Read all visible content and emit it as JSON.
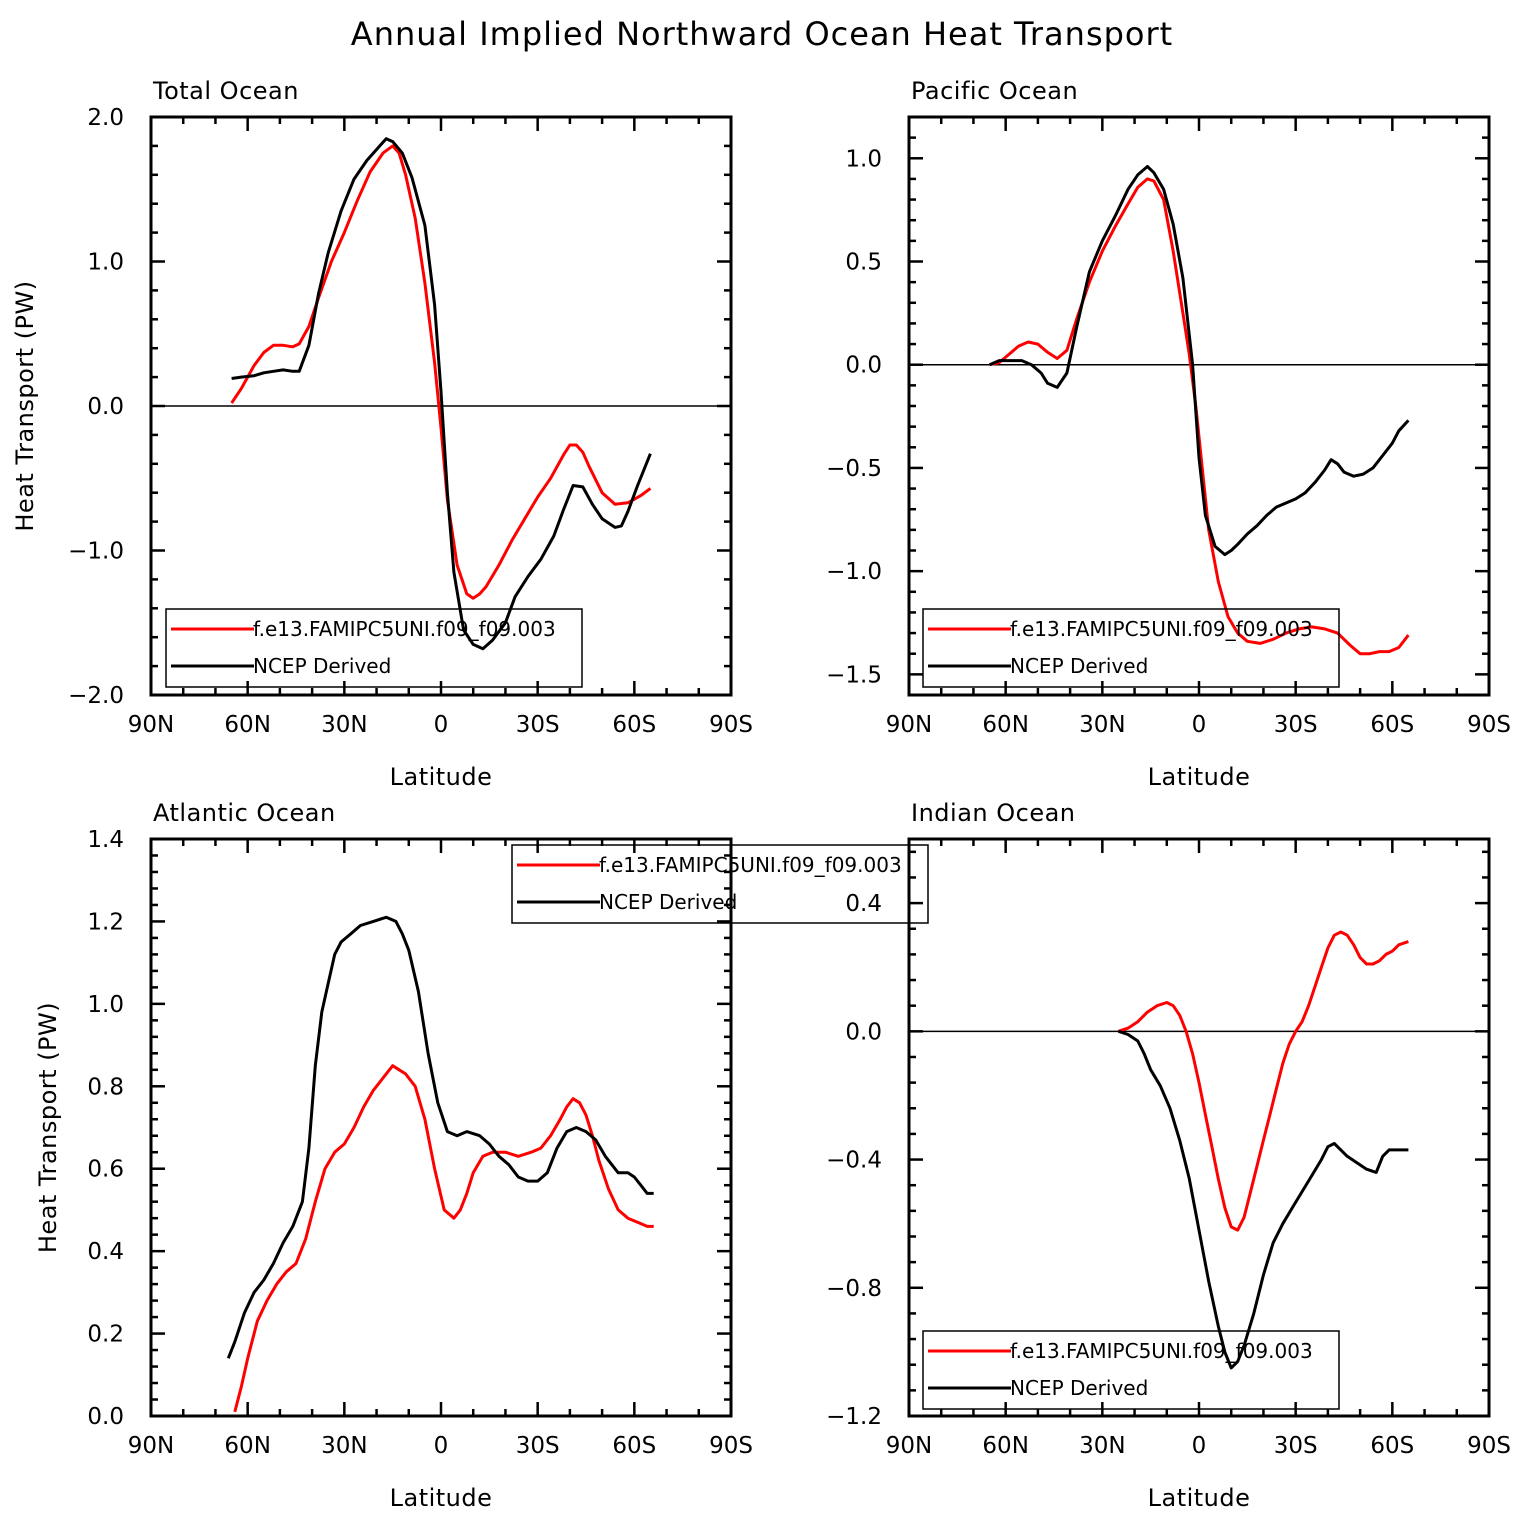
{
  "figure": {
    "title": "Annual Implied Northward Ocean Heat Transport"
  },
  "colors": {
    "model": "#ff0000",
    "obs": "#000000",
    "axis": "#000000",
    "background": "#ffffff"
  },
  "chart_data": [
    {
      "type": "line",
      "title": "Total Ocean",
      "xlabel": "Latitude",
      "ylabel": "Heat Transport (PW)",
      "xlim": [
        90,
        -90
      ],
      "ylim": [
        -2.0,
        2.0
      ],
      "xticks": [
        90,
        60,
        30,
        0,
        -30,
        -60,
        -90
      ],
      "xtick_labels": [
        "90N",
        "60N",
        "30N",
        "0",
        "30S",
        "60S",
        "90S"
      ],
      "yticks": [
        -2.0,
        -1.0,
        0.0,
        1.0,
        2.0
      ],
      "ytick_labels": [
        "−2.0",
        "−1.0",
        "0.0",
        "1.0",
        "2.0"
      ],
      "zero_line": true,
      "legend": {
        "placement": "bottom-left",
        "entries": [
          "f.e13.FAMIPC5UNI.f09_f09.003",
          "NCEP Derived"
        ]
      },
      "series": [
        {
          "name": "f.e13.FAMIPC5UNI.f09_f09.003",
          "color": "#ff0000",
          "x": [
            65,
            62,
            58,
            55,
            52,
            49,
            46,
            44,
            41,
            38,
            34,
            30,
            26,
            22,
            18,
            15,
            13,
            11,
            8,
            5,
            2,
            0,
            -2,
            -5,
            -8,
            -10,
            -12,
            -14,
            -18,
            -22,
            -26,
            -30,
            -34,
            -38,
            -40,
            -42,
            -44,
            -46,
            -50,
            -54,
            -58,
            -62,
            -65
          ],
          "y": [
            0.02,
            0.12,
            0.28,
            0.37,
            0.42,
            0.42,
            0.41,
            0.43,
            0.55,
            0.75,
            1.0,
            1.2,
            1.42,
            1.62,
            1.75,
            1.8,
            1.75,
            1.6,
            1.3,
            0.85,
            0.3,
            -0.15,
            -0.65,
            -1.1,
            -1.3,
            -1.33,
            -1.3,
            -1.25,
            -1.1,
            -0.93,
            -0.78,
            -0.63,
            -0.5,
            -0.34,
            -0.27,
            -0.27,
            -0.32,
            -0.42,
            -0.6,
            -0.68,
            -0.67,
            -0.62,
            -0.57
          ]
        },
        {
          "name": "NCEP Derived",
          "color": "#000000",
          "x": [
            65,
            62,
            58,
            55,
            52,
            49,
            46,
            44,
            41,
            38,
            35,
            31,
            27,
            23,
            19,
            17,
            15,
            12,
            9,
            5,
            2,
            0,
            -2,
            -4,
            -7,
            -10,
            -13,
            -16,
            -20,
            -23,
            -27,
            -31,
            -35,
            -38,
            -41,
            -44,
            -47,
            -50,
            -54,
            -56,
            -58,
            -61,
            -65
          ],
          "y": [
            0.19,
            0.2,
            0.21,
            0.23,
            0.24,
            0.25,
            0.24,
            0.24,
            0.42,
            0.78,
            1.06,
            1.35,
            1.57,
            1.7,
            1.8,
            1.85,
            1.83,
            1.75,
            1.58,
            1.25,
            0.7,
            0.1,
            -0.6,
            -1.15,
            -1.55,
            -1.65,
            -1.68,
            -1.62,
            -1.5,
            -1.32,
            -1.18,
            -1.06,
            -0.9,
            -0.72,
            -0.55,
            -0.56,
            -0.68,
            -0.78,
            -0.84,
            -0.83,
            -0.73,
            -0.55,
            -0.33
          ]
        }
      ]
    },
    {
      "type": "line",
      "title": "Pacific Ocean",
      "xlabel": "Latitude",
      "ylabel": "",
      "xlim": [
        90,
        -90
      ],
      "ylim": [
        -1.6,
        1.2
      ],
      "xticks": [
        90,
        60,
        30,
        0,
        -30,
        -60,
        -90
      ],
      "xtick_labels": [
        "90N",
        "60N",
        "30N",
        "0",
        "30S",
        "60S",
        "90S"
      ],
      "yticks": [
        -1.5,
        -1.0,
        -0.5,
        0.0,
        0.5,
        1.0
      ],
      "ytick_labels": [
        "−1.5",
        "−1.0",
        "−0.5",
        "0.0",
        "0.5",
        "1.0"
      ],
      "zero_line": true,
      "legend": {
        "placement": "bottom-left",
        "entries": [
          "f.e13.FAMIPC5UNI.f09_f09.003",
          "NCEP Derived"
        ]
      },
      "series": [
        {
          "name": "f.e13.FAMIPC5UNI.f09_f09.003",
          "color": "#ff0000",
          "x": [
            65,
            62,
            59,
            56,
            53,
            50,
            47,
            44,
            41,
            38,
            34,
            30,
            26,
            22,
            19,
            16,
            14,
            11,
            8,
            5,
            3,
            1,
            -1,
            -3,
            -6,
            -9,
            -12,
            -15,
            -19,
            -23,
            -27,
            -31,
            -35,
            -39,
            -43,
            -47,
            -50,
            -53,
            -56,
            -59,
            -62,
            -65
          ],
          "y": [
            0.0,
            0.01,
            0.05,
            0.09,
            0.11,
            0.1,
            0.06,
            0.03,
            0.07,
            0.22,
            0.4,
            0.55,
            0.67,
            0.78,
            0.86,
            0.9,
            0.89,
            0.8,
            0.55,
            0.25,
            0.05,
            -0.2,
            -0.5,
            -0.8,
            -1.05,
            -1.22,
            -1.3,
            -1.34,
            -1.35,
            -1.33,
            -1.3,
            -1.28,
            -1.27,
            -1.28,
            -1.3,
            -1.36,
            -1.4,
            -1.4,
            -1.39,
            -1.39,
            -1.37,
            -1.31
          ]
        },
        {
          "name": "NCEP Derived",
          "color": "#000000",
          "x": [
            65,
            62,
            58,
            55,
            52,
            49,
            47,
            44,
            41,
            38,
            34,
            30,
            26,
            22,
            19,
            16,
            14,
            11,
            8,
            5,
            2,
            0,
            -2,
            -5,
            -8,
            -10,
            -12,
            -15,
            -18,
            -21,
            -24,
            -27,
            -30,
            -33,
            -36,
            -39,
            -41,
            -43,
            -45,
            -48,
            -51,
            -54,
            -57,
            -60,
            -62,
            -65
          ],
          "y": [
            0.0,
            0.02,
            0.02,
            0.02,
            0.0,
            -0.04,
            -0.09,
            -0.11,
            -0.04,
            0.18,
            0.45,
            0.6,
            0.72,
            0.85,
            0.92,
            0.96,
            0.93,
            0.85,
            0.68,
            0.42,
            0.0,
            -0.45,
            -0.73,
            -0.88,
            -0.92,
            -0.9,
            -0.87,
            -0.82,
            -0.78,
            -0.73,
            -0.69,
            -0.67,
            -0.65,
            -0.62,
            -0.57,
            -0.51,
            -0.46,
            -0.48,
            -0.52,
            -0.54,
            -0.53,
            -0.5,
            -0.44,
            -0.38,
            -0.32,
            -0.27
          ]
        }
      ]
    },
    {
      "type": "line",
      "title": "Atlantic Ocean",
      "xlabel": "Latitude",
      "ylabel": "Heat Transport (PW)",
      "xlim": [
        90,
        -90
      ],
      "ylim": [
        0.0,
        1.4
      ],
      "xticks": [
        90,
        60,
        30,
        0,
        -30,
        -60,
        -90
      ],
      "xtick_labels": [
        "90N",
        "60N",
        "30N",
        "0",
        "30S",
        "60S",
        "90S"
      ],
      "yticks": [
        0.0,
        0.2,
        0.4,
        0.6,
        0.8,
        1.0,
        1.2,
        1.4
      ],
      "ytick_labels": [
        "0.0",
        "0.2",
        "0.4",
        "0.6",
        "0.8",
        "1.0",
        "1.2",
        "1.4"
      ],
      "zero_line": false,
      "legend": {
        "placement": "top-center",
        "entries": [
          "f.e13.FAMIPC5UNI.f09_f09.003",
          "NCEP Derived"
        ]
      },
      "series": [
        {
          "name": "f.e13.FAMIPC5UNI.f09_f09.003",
          "color": "#ff0000",
          "x": [
            64,
            62,
            60,
            57,
            54,
            51,
            48,
            45,
            42,
            39,
            36,
            33,
            30,
            27,
            24,
            21,
            18,
            15,
            13,
            11,
            8,
            5,
            2,
            -1,
            -4,
            -6,
            -8,
            -10,
            -13,
            -16,
            -20,
            -24,
            -28,
            -31,
            -34,
            -37,
            -39,
            -41,
            -43,
            -45,
            -47,
            -49,
            -52,
            -55,
            -58,
            -61,
            -64,
            -66
          ],
          "y": [
            0.01,
            0.07,
            0.14,
            0.23,
            0.28,
            0.32,
            0.35,
            0.37,
            0.43,
            0.52,
            0.6,
            0.64,
            0.66,
            0.7,
            0.75,
            0.79,
            0.82,
            0.85,
            0.84,
            0.83,
            0.8,
            0.72,
            0.6,
            0.5,
            0.48,
            0.5,
            0.54,
            0.59,
            0.63,
            0.64,
            0.64,
            0.63,
            0.64,
            0.65,
            0.68,
            0.72,
            0.75,
            0.77,
            0.76,
            0.73,
            0.68,
            0.62,
            0.55,
            0.5,
            0.48,
            0.47,
            0.46,
            0.46
          ]
        },
        {
          "name": "NCEP Derived",
          "color": "#000000",
          "x": [
            66,
            64,
            61,
            58,
            55,
            52,
            49,
            46,
            43,
            41,
            39,
            37,
            35,
            33,
            31,
            28,
            25,
            21,
            17,
            14,
            12,
            10,
            7,
            4,
            1,
            -2,
            -5,
            -8,
            -12,
            -15,
            -18,
            -21,
            -24,
            -27,
            -30,
            -33,
            -36,
            -39,
            -42,
            -45,
            -48,
            -51,
            -55,
            -58,
            -60,
            -62,
            -64,
            -66
          ],
          "y": [
            0.14,
            0.18,
            0.25,
            0.3,
            0.33,
            0.37,
            0.42,
            0.46,
            0.52,
            0.65,
            0.85,
            0.98,
            1.05,
            1.12,
            1.15,
            1.17,
            1.19,
            1.2,
            1.21,
            1.2,
            1.17,
            1.13,
            1.03,
            0.88,
            0.76,
            0.69,
            0.68,
            0.69,
            0.68,
            0.66,
            0.63,
            0.61,
            0.58,
            0.57,
            0.57,
            0.59,
            0.65,
            0.69,
            0.7,
            0.69,
            0.67,
            0.63,
            0.59,
            0.59,
            0.58,
            0.56,
            0.54,
            0.54
          ]
        }
      ]
    },
    {
      "type": "line",
      "title": "Indian Ocean",
      "xlabel": "Latitude",
      "ylabel": "",
      "xlim": [
        90,
        -90
      ],
      "ylim": [
        -1.2,
        0.6
      ],
      "xticks": [
        90,
        60,
        30,
        0,
        -30,
        -60,
        -90
      ],
      "xtick_labels": [
        "90N",
        "60N",
        "30N",
        "0",
        "30S",
        "60S",
        "90S"
      ],
      "yticks": [
        -1.2,
        -0.8,
        -0.4,
        0.0,
        0.4
      ],
      "ytick_labels": [
        "−1.2",
        "−0.8",
        "−0.4",
        "0.0",
        "0.4"
      ],
      "zero_line": true,
      "legend": {
        "placement": "bottom-left",
        "entries": [
          "f.e13.FAMIPC5UNI.f09_f09.003",
          "NCEP Derived"
        ]
      },
      "series": [
        {
          "name": "f.e13.FAMIPC5UNI.f09_f09.003",
          "color": "#ff0000",
          "x": [
            25,
            22,
            19,
            16,
            13,
            10,
            8,
            6,
            4,
            2,
            0,
            -2,
            -4,
            -6,
            -8,
            -10,
            -12,
            -14,
            -16,
            -18,
            -20,
            -22,
            -24,
            -26,
            -28,
            -30,
            -32,
            -34,
            -36,
            -38,
            -40,
            -42,
            -44,
            -46,
            -48,
            -50,
            -52,
            -54,
            -56,
            -58,
            -60,
            -62,
            -65
          ],
          "y": [
            0.0,
            0.01,
            0.03,
            0.06,
            0.08,
            0.09,
            0.08,
            0.05,
            0.0,
            -0.07,
            -0.16,
            -0.26,
            -0.36,
            -0.46,
            -0.55,
            -0.61,
            -0.62,
            -0.58,
            -0.5,
            -0.42,
            -0.34,
            -0.26,
            -0.18,
            -0.1,
            -0.04,
            0.0,
            0.03,
            0.08,
            0.14,
            0.2,
            0.26,
            0.3,
            0.31,
            0.3,
            0.27,
            0.23,
            0.21,
            0.21,
            0.22,
            0.24,
            0.25,
            0.27,
            0.28
          ]
        },
        {
          "name": "NCEP Derived",
          "color": "#000000",
          "x": [
            25,
            22,
            19,
            17,
            15,
            12,
            9,
            6,
            3,
            0,
            -3,
            -6,
            -8,
            -10,
            -12,
            -14,
            -17,
            -20,
            -23,
            -26,
            -29,
            -32,
            -35,
            -38,
            -40,
            -42,
            -44,
            -46,
            -49,
            -52,
            -55,
            -57,
            -59,
            -62,
            -65
          ],
          "y": [
            0.0,
            -0.01,
            -0.03,
            -0.07,
            -0.12,
            -0.17,
            -0.24,
            -0.34,
            -0.46,
            -0.62,
            -0.78,
            -0.92,
            -1.0,
            -1.05,
            -1.03,
            -0.98,
            -0.88,
            -0.76,
            -0.66,
            -0.6,
            -0.55,
            -0.5,
            -0.45,
            -0.4,
            -0.36,
            -0.35,
            -0.37,
            -0.39,
            -0.41,
            -0.43,
            -0.44,
            -0.39,
            -0.37,
            -0.37,
            -0.37
          ]
        }
      ]
    }
  ]
}
